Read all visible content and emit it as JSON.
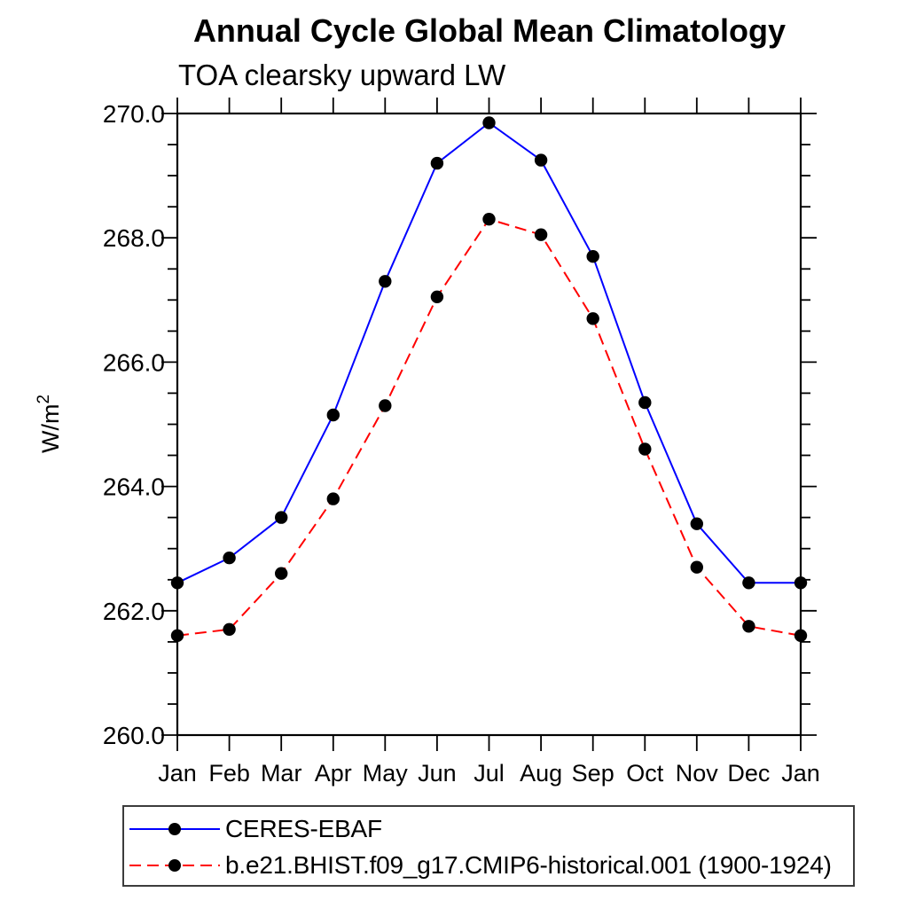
{
  "title": "Annual Cycle Global Mean Climatology",
  "subtitle": "TOA clearsky upward LW",
  "chart_data": {
    "type": "line",
    "x_categories": [
      "Jan",
      "Feb",
      "Mar",
      "Apr",
      "May",
      "Jun",
      "Jul",
      "Aug",
      "Sep",
      "Oct",
      "Nov",
      "Dec",
      "Jan"
    ],
    "xlabel": "",
    "ylabel": "W/m²",
    "ylabel_base": "W/m",
    "ylabel_sup": "2",
    "ylim": [
      260.0,
      270.0
    ],
    "ytick_interval": 2.0,
    "yminor_interval": 0.5,
    "yticks": [
      {
        "label": "270.0",
        "value": 270.0
      },
      {
        "label": "268.0",
        "value": 268.0
      },
      {
        "label": "266.0",
        "value": 266.0
      },
      {
        "label": "264.0",
        "value": 264.0
      },
      {
        "label": "262.0",
        "value": 262.0
      },
      {
        "label": "260.0",
        "value": 260.0
      }
    ],
    "grid": false,
    "legend_position": "framed box below plot, left-aligned",
    "frame_color": "#000000",
    "series": [
      {
        "name": "CERES-EBAF",
        "color": "#0000ff",
        "line_style": "solid",
        "marker": "filled-circle",
        "marker_color": "#000000",
        "values": [
          262.45,
          262.85,
          263.5,
          265.15,
          267.3,
          269.2,
          269.85,
          269.25,
          267.7,
          265.35,
          263.4,
          262.45,
          262.45
        ]
      },
      {
        "name": "b.e21.BHIST.f09_g17.CMIP6-historical.001 (1900-1924)",
        "color": "#ff0000",
        "line_style": "dashed",
        "marker": "filled-circle",
        "marker_color": "#000000",
        "values": [
          261.6,
          261.7,
          262.6,
          263.8,
          265.3,
          267.05,
          268.3,
          268.05,
          266.7,
          264.6,
          262.7,
          261.75,
          261.6
        ]
      }
    ]
  }
}
